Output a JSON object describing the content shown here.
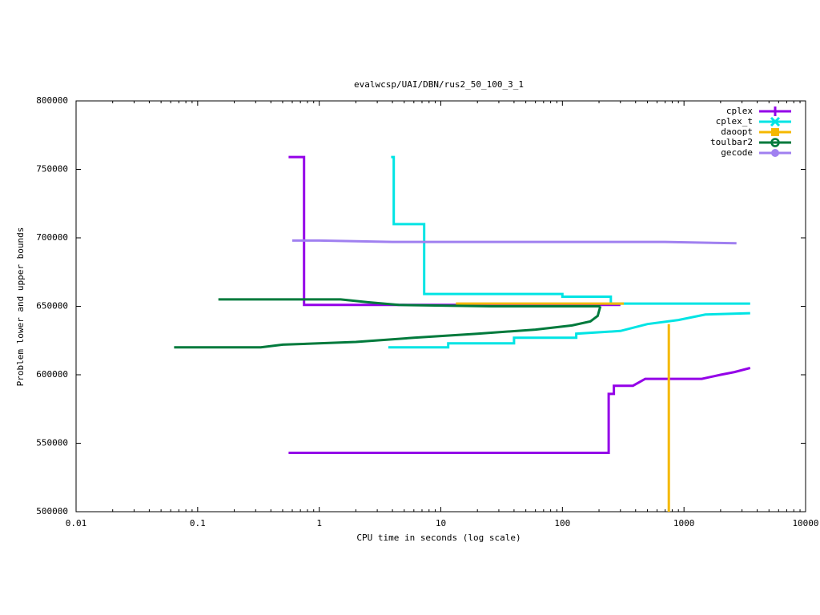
{
  "chart_data": {
    "type": "line",
    "title": "evalwcsp/UAI/DBN/rus2_50_100_3_1",
    "x_label": "CPU time in seconds (log scale)",
    "y_label": "Problem lower and upper bounds",
    "x_scale": "log",
    "xlim": [
      0.01,
      10000
    ],
    "ylim": [
      500000,
      800000
    ],
    "xticks": [
      0.01,
      0.1,
      1,
      10,
      100,
      1000,
      10000
    ],
    "yticks": [
      500000,
      550000,
      600000,
      650000,
      700000,
      750000,
      800000
    ],
    "legend": "top-right",
    "series": [
      {
        "name": "cplex",
        "color": "#9400e8",
        "marker": "plus",
        "x": [
          0.56,
          0.75,
          0.75,
          300,
          null,
          0.56,
          240,
          240,
          265,
          265,
          380,
          480,
          1400,
          2000,
          2600,
          3500
        ],
        "values": [
          759000,
          759000,
          651000,
          651000,
          null,
          543000,
          543000,
          586000,
          586000,
          592000,
          592000,
          597000,
          597000,
          600000,
          602000,
          605000
        ]
      },
      {
        "name": "cplex_t",
        "color": "#00e4e4",
        "marker": "cross",
        "x": [
          3.9,
          4.1,
          4.1,
          7.3,
          7.3,
          100,
          100,
          250,
          250,
          3500,
          null,
          3.7,
          11.5,
          11.5,
          40,
          40,
          130,
          130,
          300,
          500,
          900,
          1500,
          3500
        ],
        "values": [
          759000,
          759000,
          710000,
          710000,
          659000,
          659000,
          657000,
          657000,
          652000,
          652000,
          null,
          620000,
          620000,
          623000,
          623000,
          627000,
          627000,
          630000,
          632000,
          637000,
          640000,
          644000,
          645000
        ]
      },
      {
        "name": "daoopt",
        "color": "#f5b800",
        "marker": "square",
        "x": [
          13.3,
          320,
          null,
          750,
          750
        ],
        "values": [
          652000,
          652000,
          null,
          637000,
          500000
        ]
      },
      {
        "name": "toulbar2",
        "color": "#007a3c",
        "marker": "circle",
        "x": [
          0.148,
          1.5,
          2.5,
          4.5,
          26,
          205,
          null,
          0.064,
          0.33,
          0.5,
          2,
          6,
          20,
          60,
          120,
          170,
          195,
          205
        ],
        "values": [
          655000,
          655000,
          653000,
          651000,
          650000,
          650000,
          null,
          620000,
          620000,
          622000,
          624000,
          627000,
          630000,
          633000,
          636000,
          639000,
          643000,
          650000
        ]
      },
      {
        "name": "gecode",
        "color": "#a080f0",
        "marker": "dot",
        "x": [
          0.6,
          1,
          4,
          700,
          2700
        ],
        "values": [
          698000,
          698000,
          697000,
          697000,
          696000
        ]
      }
    ]
  }
}
